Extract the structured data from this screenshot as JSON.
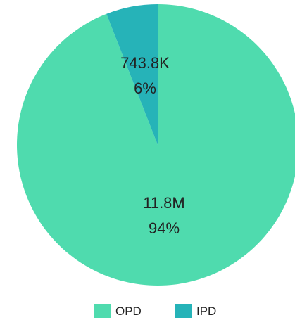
{
  "chart_data": {
    "type": "pie",
    "slices": [
      {
        "name": "OPD",
        "value_label": "11.8M",
        "percent_label": "94%",
        "value": 11800000,
        "percent": 94,
        "color": "#4fdbae"
      },
      {
        "name": "IPD",
        "value_label": "743.8K",
        "percent_label": "6%",
        "value": 743800,
        "percent": 6,
        "color": "#26b3b8"
      }
    ],
    "legend": {
      "placement": "bottom",
      "items": [
        {
          "label": "OPD",
          "color": "#4fdbae"
        },
        {
          "label": "IPD",
          "color": "#26b3b8"
        }
      ]
    }
  }
}
